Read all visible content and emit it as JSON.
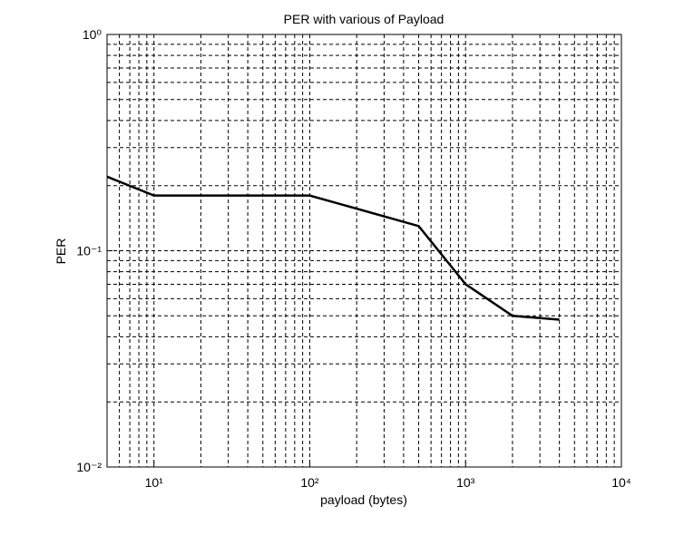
{
  "chart_data": {
    "type": "line",
    "title": "PER with various of Payload",
    "x_label": "payload (bytes)",
    "y_label": "PER",
    "x": [
      5,
      10,
      100,
      500,
      1000,
      2000,
      4000
    ],
    "series": [
      {
        "color": "#000000",
        "values": [
          0.22,
          0.18,
          0.18,
          0.13,
          0.07,
          0.05,
          0.048
        ]
      }
    ],
    "xlim": [
      5,
      10000
    ],
    "ylim": [
      0.01,
      1
    ],
    "xticks": [
      {
        "value": 10,
        "label": "10¹"
      },
      {
        "value": 100,
        "label": "10²"
      },
      {
        "value": 1000,
        "label": "10³"
      },
      {
        "value": 10000,
        "label": "10⁴"
      }
    ],
    "yticks": [
      {
        "value": 0.01,
        "label": "10⁻²"
      },
      {
        "value": 0.1,
        "label": "10⁻¹"
      },
      {
        "value": 1,
        "label": "10⁰"
      }
    ],
    "xscale": "log",
    "yscale": "log",
    "grid": true,
    "minor_grid": true
  }
}
